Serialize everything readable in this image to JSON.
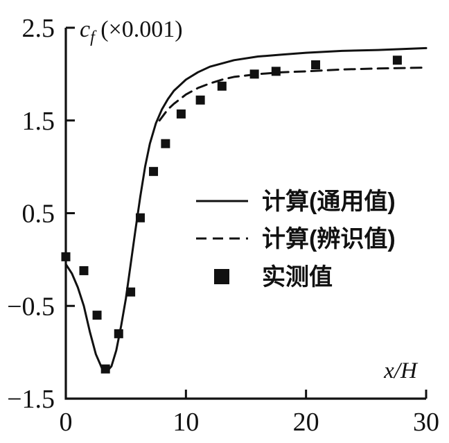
{
  "chart_data": {
    "type": "line",
    "title": {
      "symbol": "c",
      "subscript": "f",
      "suffix": " (×0.001)"
    },
    "xlabel": "x/H",
    "ylabel": "cf (×0.001)",
    "xlim": [
      0,
      30
    ],
    "ylim": [
      -1.5,
      2.5
    ],
    "xticks": [
      0,
      10,
      20,
      30
    ],
    "yticks": [
      -1.5,
      -0.5,
      0.5,
      1.5,
      2.5
    ],
    "grid": false,
    "legend_position": "center-right",
    "colors": {
      "stroke": "#111111",
      "background": "#ffffff"
    },
    "series": [
      {
        "name": "计算(通用值)",
        "style": "solid",
        "points": [
          [
            0,
            -0.05
          ],
          [
            0.5,
            -0.15
          ],
          [
            1,
            -0.3
          ],
          [
            1.5,
            -0.5
          ],
          [
            2,
            -0.78
          ],
          [
            2.5,
            -1.02
          ],
          [
            3,
            -1.17
          ],
          [
            3.4,
            -1.21
          ],
          [
            3.8,
            -1.15
          ],
          [
            4.2,
            -0.98
          ],
          [
            4.6,
            -0.72
          ],
          [
            5,
            -0.42
          ],
          [
            5.4,
            -0.05
          ],
          [
            5.8,
            0.32
          ],
          [
            6.2,
            0.68
          ],
          [
            6.6,
            1.0
          ],
          [
            7,
            1.25
          ],
          [
            7.5,
            1.47
          ],
          [
            8,
            1.62
          ],
          [
            8.5,
            1.73
          ],
          [
            9,
            1.82
          ],
          [
            10,
            1.94
          ],
          [
            11,
            2.02
          ],
          [
            12,
            2.08
          ],
          [
            14,
            2.15
          ],
          [
            16,
            2.19
          ],
          [
            18,
            2.21
          ],
          [
            20,
            2.23
          ],
          [
            23,
            2.25
          ],
          [
            26,
            2.26
          ],
          [
            30,
            2.28
          ]
        ]
      },
      {
        "name": "计算(辨识值)",
        "style": "dashed",
        "points": [
          [
            7.8,
            1.5
          ],
          [
            8.5,
            1.62
          ],
          [
            9,
            1.68
          ],
          [
            10,
            1.78
          ],
          [
            11,
            1.85
          ],
          [
            12,
            1.9
          ],
          [
            13,
            1.94
          ],
          [
            14,
            1.97
          ],
          [
            16,
            2.0
          ],
          [
            18,
            2.02
          ],
          [
            20,
            2.03
          ],
          [
            23,
            2.05
          ],
          [
            26,
            2.06
          ],
          [
            30,
            2.07
          ]
        ]
      },
      {
        "name": "实测值",
        "style": "scatter-square",
        "points": [
          [
            0,
            0.03
          ],
          [
            1.5,
            -0.12
          ],
          [
            2.6,
            -0.6
          ],
          [
            3.3,
            -1.18
          ],
          [
            4.4,
            -0.8
          ],
          [
            5.4,
            -0.35
          ],
          [
            6.2,
            0.45
          ],
          [
            7.3,
            0.95
          ],
          [
            8.3,
            1.25
          ],
          [
            9.6,
            1.57
          ],
          [
            11.2,
            1.72
          ],
          [
            13,
            1.87
          ],
          [
            15.7,
            2.0
          ],
          [
            17.5,
            2.03
          ],
          [
            20.8,
            2.1
          ],
          [
            27.6,
            2.15
          ]
        ]
      }
    ]
  }
}
